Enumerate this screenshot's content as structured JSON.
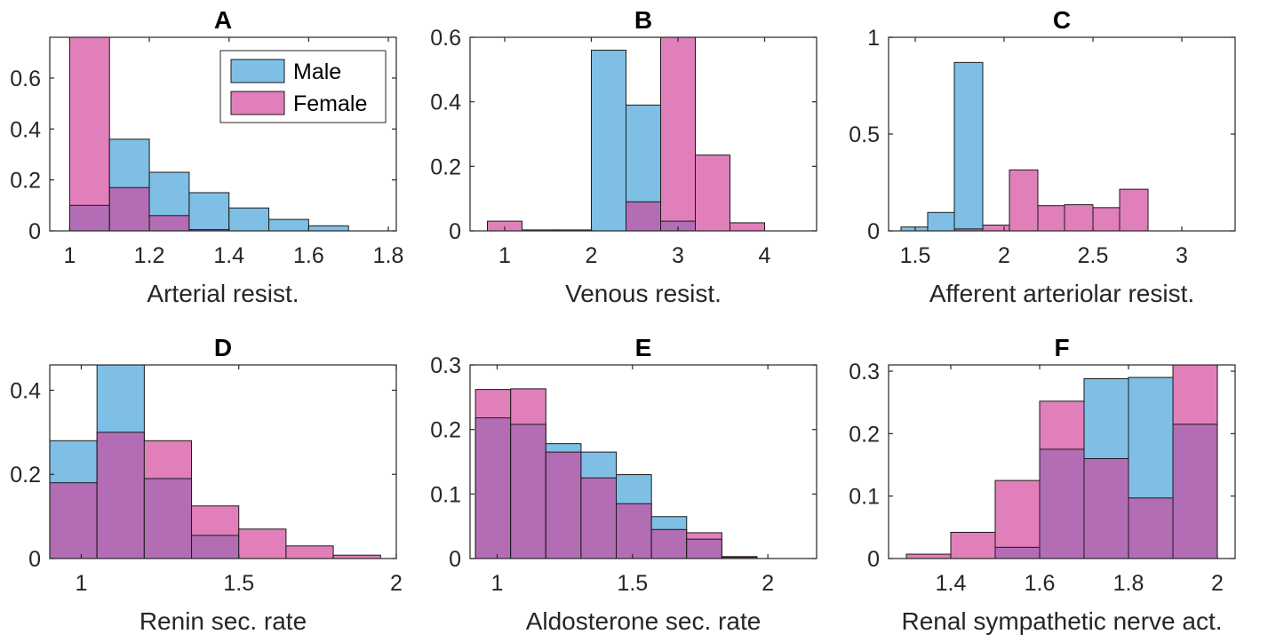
{
  "colors": {
    "male": "#7fbfe6",
    "female": "#e17fba",
    "overlap": "#b36db5",
    "axis": "#262626"
  },
  "legend": {
    "placement": "top-right",
    "entries": [
      "Male",
      "Female"
    ],
    "panel": 0
  },
  "chart_data": [
    {
      "type": "bar",
      "title": "A",
      "xlabel": "Arterial resist.",
      "xlim": [
        0.95,
        1.82
      ],
      "ylim": [
        0,
        0.76
      ],
      "xticks": [
        1,
        1.2,
        1.4,
        1.6,
        1.8
      ],
      "xtick_labels": [
        "1",
        "1.2",
        "1.4",
        "1.6",
        "1.8"
      ],
      "yticks": [
        0,
        0.2,
        0.4,
        0.6
      ],
      "ytick_labels": [
        "0",
        "0.2",
        "0.4",
        "0.6"
      ],
      "bin_edges": [
        1.0,
        1.1,
        1.2,
        1.3,
        1.4,
        1.5,
        1.6,
        1.7
      ],
      "series": [
        {
          "name": "Male",
          "values": [
            0.1,
            0.36,
            0.23,
            0.15,
            0.09,
            0.045,
            0.02
          ]
        },
        {
          "name": "Female",
          "values": [
            0.76,
            0.17,
            0.06,
            0.005,
            0,
            0,
            0
          ]
        }
      ]
    },
    {
      "type": "bar",
      "title": "B",
      "xlabel": "Venous resist.",
      "xlim": [
        0.6,
        4.6
      ],
      "ylim": [
        0,
        0.6
      ],
      "xticks": [
        1,
        2,
        3,
        4
      ],
      "xtick_labels": [
        "1",
        "2",
        "3",
        "4"
      ],
      "yticks": [
        0,
        0.2,
        0.4,
        0.6
      ],
      "ytick_labels": [
        "0",
        "0.2",
        "0.4",
        "0.6"
      ],
      "bin_edges": [
        0.8,
        1.2,
        1.6,
        2.0,
        2.4,
        2.8,
        3.2,
        3.6,
        4.0
      ],
      "series": [
        {
          "name": "Male",
          "values": [
            0,
            0.003,
            0.003,
            0.56,
            0.39,
            0.03,
            0,
            0
          ]
        },
        {
          "name": "Female",
          "values": [
            0.03,
            0,
            0,
            0,
            0.09,
            0.6,
            0.235,
            0.025
          ]
        }
      ]
    },
    {
      "type": "bar",
      "title": "C",
      "xlabel": "Afferent arteriolar resist.",
      "xlim": [
        1.35,
        3.3
      ],
      "ylim": [
        0,
        1.0
      ],
      "xticks": [
        1.5,
        2,
        2.5,
        3
      ],
      "xtick_labels": [
        "1.5",
        "2",
        "2.5",
        "3"
      ],
      "yticks": [
        0,
        0.5,
        1
      ],
      "ytick_labels": [
        "0",
        "0.5",
        "1"
      ],
      "bin_edges": [
        1.42,
        1.57,
        1.72,
        1.88,
        2.03,
        2.19,
        2.34,
        2.5,
        2.65,
        2.81,
        2.96,
        3.12
      ],
      "series": [
        {
          "name": "Male",
          "values": [
            0.02,
            0.095,
            0.87,
            0,
            0,
            0,
            0,
            0,
            0,
            0,
            0
          ]
        },
        {
          "name": "Female",
          "values": [
            0,
            0,
            0.01,
            0.03,
            0.315,
            0.13,
            0.135,
            0.12,
            0.215,
            0,
            0
          ]
        }
      ]
    },
    {
      "type": "bar",
      "title": "D",
      "xlabel": "Renin sec. rate",
      "xlim": [
        0.9,
        2.0
      ],
      "ylim": [
        0,
        0.46
      ],
      "xticks": [
        1,
        1.5,
        2
      ],
      "xtick_labels": [
        "1",
        "1.5",
        "2"
      ],
      "yticks": [
        0,
        0.2,
        0.4
      ],
      "ytick_labels": [
        "0",
        "0.2",
        "0.4"
      ],
      "bin_edges": [
        0.9,
        1.05,
        1.2,
        1.35,
        1.5,
        1.65,
        1.8,
        1.95
      ],
      "series": [
        {
          "name": "Male",
          "values": [
            0.28,
            0.46,
            0.19,
            0.055,
            0,
            0,
            0
          ]
        },
        {
          "name": "Female",
          "values": [
            0.18,
            0.3,
            0.28,
            0.125,
            0.07,
            0.03,
            0.008
          ]
        }
      ]
    },
    {
      "type": "bar",
      "title": "E",
      "xlabel": "Aldosterone sec. rate",
      "xlim": [
        0.9,
        2.18
      ],
      "ylim": [
        0,
        0.3
      ],
      "xticks": [
        1,
        1.5,
        2
      ],
      "xtick_labels": [
        "1",
        "1.5",
        "2"
      ],
      "yticks": [
        0,
        0.1,
        0.2,
        0.3
      ],
      "ytick_labels": [
        "0",
        "0.1",
        "0.2",
        "0.3"
      ],
      "bin_edges": [
        0.92,
        1.05,
        1.18,
        1.31,
        1.44,
        1.57,
        1.7,
        1.83,
        1.96,
        2.09
      ],
      "series": [
        {
          "name": "Male",
          "values": [
            0.218,
            0.208,
            0.178,
            0.165,
            0.13,
            0.065,
            0.03,
            0.003,
            0
          ]
        },
        {
          "name": "Female",
          "values": [
            0.262,
            0.263,
            0.165,
            0.125,
            0.085,
            0.045,
            0.04,
            0.002,
            0
          ]
        }
      ]
    },
    {
      "type": "bar",
      "title": "F",
      "xlabel": "Renal sympathetic nerve act.",
      "xlim": [
        1.26,
        2.04
      ],
      "ylim": [
        0,
        0.31
      ],
      "xticks": [
        1.4,
        1.6,
        1.8,
        2
      ],
      "xtick_labels": [
        "1.4",
        "1.6",
        "1.8",
        "2"
      ],
      "yticks": [
        0,
        0.1,
        0.2,
        0.3
      ],
      "ytick_labels": [
        "0",
        "0.1",
        "0.2",
        "0.3"
      ],
      "bin_edges": [
        1.3,
        1.4,
        1.5,
        1.6,
        1.7,
        1.8,
        1.9,
        2.0
      ],
      "series": [
        {
          "name": "Male",
          "values": [
            0,
            0,
            0.018,
            0.175,
            0.288,
            0.29,
            0.215
          ]
        },
        {
          "name": "Female",
          "values": [
            0.007,
            0.042,
            0.125,
            0.252,
            0.16,
            0.097,
            0.31
          ]
        }
      ]
    }
  ]
}
